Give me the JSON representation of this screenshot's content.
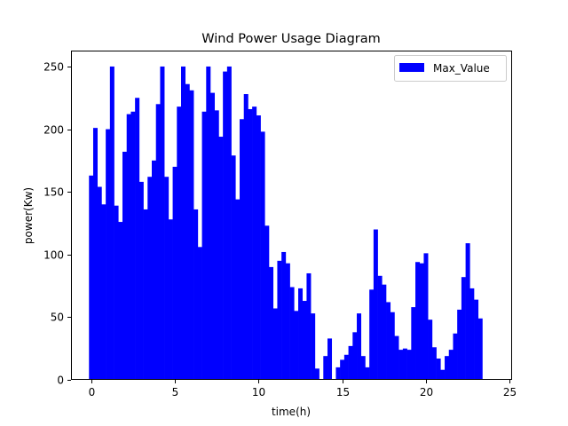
{
  "chart_data": {
    "type": "bar",
    "title": "Wind Power Usage Diagram",
    "xlabel": "time(h)",
    "ylabel": "power(Kw)",
    "xlim": [
      -1.2,
      25.1
    ],
    "ylim": [
      0,
      262
    ],
    "xticks": [
      0,
      5,
      10,
      15,
      20,
      25
    ],
    "yticks": [
      0,
      50,
      100,
      150,
      200,
      250
    ],
    "grid": false,
    "legend": {
      "placement": "top-right"
    },
    "bar_width": 0.25,
    "color": "#0000ff",
    "series": [
      {
        "name": "Max_Value",
        "x": [
          0.0,
          0.25,
          0.5,
          0.75,
          1.0,
          1.25,
          1.5,
          1.75,
          2.0,
          2.25,
          2.5,
          2.75,
          3.0,
          3.25,
          3.5,
          3.75,
          4.0,
          4.25,
          4.5,
          4.75,
          5.0,
          5.25,
          5.5,
          5.75,
          6.0,
          6.25,
          6.5,
          6.75,
          7.0,
          7.25,
          7.5,
          7.75,
          8.0,
          8.25,
          8.5,
          8.75,
          9.0,
          9.25,
          9.5,
          9.75,
          10.0,
          10.25,
          10.5,
          10.75,
          11.0,
          11.25,
          11.5,
          11.75,
          12.0,
          12.25,
          12.5,
          12.75,
          13.0,
          13.25,
          13.5,
          13.75,
          14.0,
          14.25,
          14.5,
          14.75,
          15.0,
          15.25,
          15.5,
          15.75,
          16.0,
          16.25,
          16.5,
          16.75,
          17.0,
          17.25,
          17.5,
          17.75,
          18.0,
          18.25,
          18.5,
          18.75,
          19.0,
          19.25,
          19.5,
          19.75,
          20.0,
          20.25,
          20.5,
          20.75,
          21.0,
          21.25,
          21.5,
          21.75,
          22.0,
          22.25,
          22.5,
          22.75,
          23.0,
          23.25,
          23.5,
          23.75
        ],
        "values": [
          163,
          201,
          154,
          140,
          200,
          250,
          139,
          126,
          182,
          212,
          214,
          225,
          158,
          136,
          162,
          175,
          220,
          250,
          162,
          128,
          170,
          218,
          250,
          236,
          231,
          136,
          106,
          214,
          250,
          229,
          215,
          194,
          246,
          250,
          179,
          144,
          208,
          228,
          216,
          218,
          211,
          198,
          123,
          90,
          57,
          95,
          102,
          93,
          74,
          55,
          73,
          63,
          85,
          53,
          9,
          0,
          19,
          33,
          0,
          10,
          16,
          20,
          27,
          38,
          53,
          19,
          10,
          72,
          120,
          83,
          76,
          62,
          54,
          35,
          24,
          25,
          24,
          58,
          94,
          93,
          101,
          48,
          26,
          17,
          8,
          19,
          24,
          37,
          56,
          82,
          109,
          73,
          64,
          49,
          0,
          0
        ]
      }
    ]
  }
}
